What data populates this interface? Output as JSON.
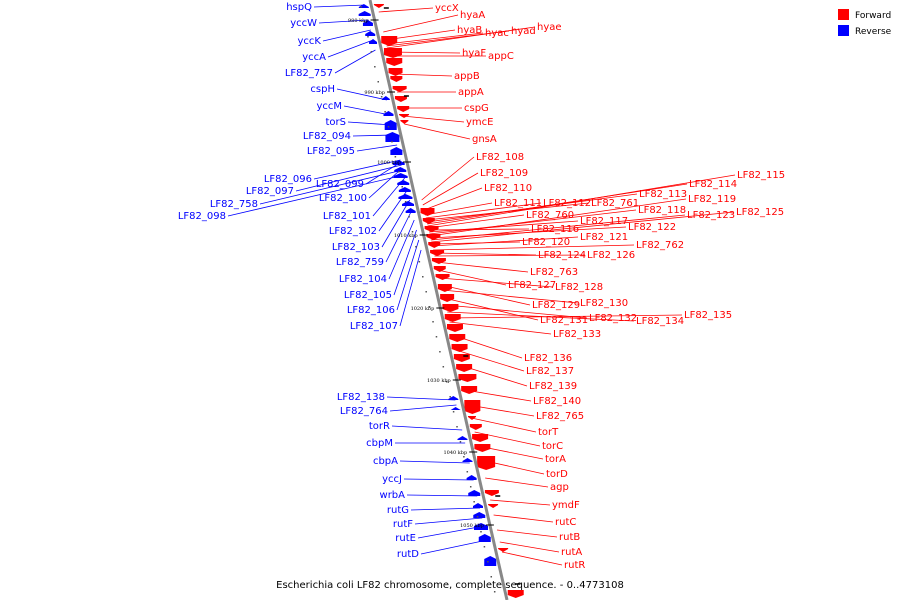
{
  "caption": "Escherichia coli LF82 chromosome, complete sequence. - 0..4773108",
  "legend": [
    {
      "label": "Forward",
      "color": "#ff0000"
    },
    {
      "label": "Reverse",
      "color": "#0000ff"
    }
  ],
  "colors": {
    "forward": "#ff0000",
    "reverse": "#0000ff",
    "backbone": "#888888"
  },
  "ticks": [
    "980 kbp",
    "990 kbp",
    "1000 kbp",
    "1010 kbp",
    "1020 kbp",
    "1030 kbp",
    "1040 kbp",
    "1050 kbp"
  ],
  "reverse_labels": [
    "hspQ",
    "yccW",
    "yccK",
    "yccA",
    "LF82_757",
    "cspH",
    "yccM",
    "torS",
    "LF82_094",
    "LF82_095",
    "LF82_096",
    "LF82_097",
    "LF82_758",
    "LF82_098",
    "LF82_099",
    "LF82_100",
    "LF82_101",
    "LF82_102",
    "LF82_103",
    "LF82_759",
    "LF82_104",
    "LF82_105",
    "LF82_106",
    "LF82_107",
    "LF82_138",
    "LF82_764",
    "torR",
    "cbpM",
    "cbpA",
    "yccJ",
    "wrbA",
    "rutG",
    "rutF",
    "rutE",
    "rutD"
  ],
  "forward_labels": [
    "yccX",
    "hyaA",
    "hyaB",
    "hyac",
    "hyad",
    "hyae",
    "hyaF",
    "appC",
    "appB",
    "appA",
    "cspG",
    "ymcE",
    "gnsA",
    "LF82_108",
    "LF82_109",
    "LF82_110",
    "LF82_111",
    "LF82_112",
    "LF82_761",
    "LF82_113",
    "LF82_114",
    "LF82_115",
    "LF82_760",
    "LF82_116",
    "LF82_117",
    "LF82_118",
    "LF82_119",
    "LF82_122",
    "LF82_123",
    "LF82_125",
    "LF82_120",
    "LF82_121",
    "LF82_762",
    "LF82_124",
    "LF82_126",
    "LF82_763",
    "LF82_127",
    "LF82_128",
    "LF82_129",
    "LF82_130",
    "LF82_131",
    "LF82_132",
    "LF82_134",
    "LF82_135",
    "LF82_133",
    "LF82_136",
    "LF82_137",
    "LF82_139",
    "LF82_140",
    "LF82_765",
    "torT",
    "torC",
    "torA",
    "torD",
    "agp",
    "ymdF",
    "rutC",
    "rutB",
    "rutA",
    "rutR"
  ]
}
